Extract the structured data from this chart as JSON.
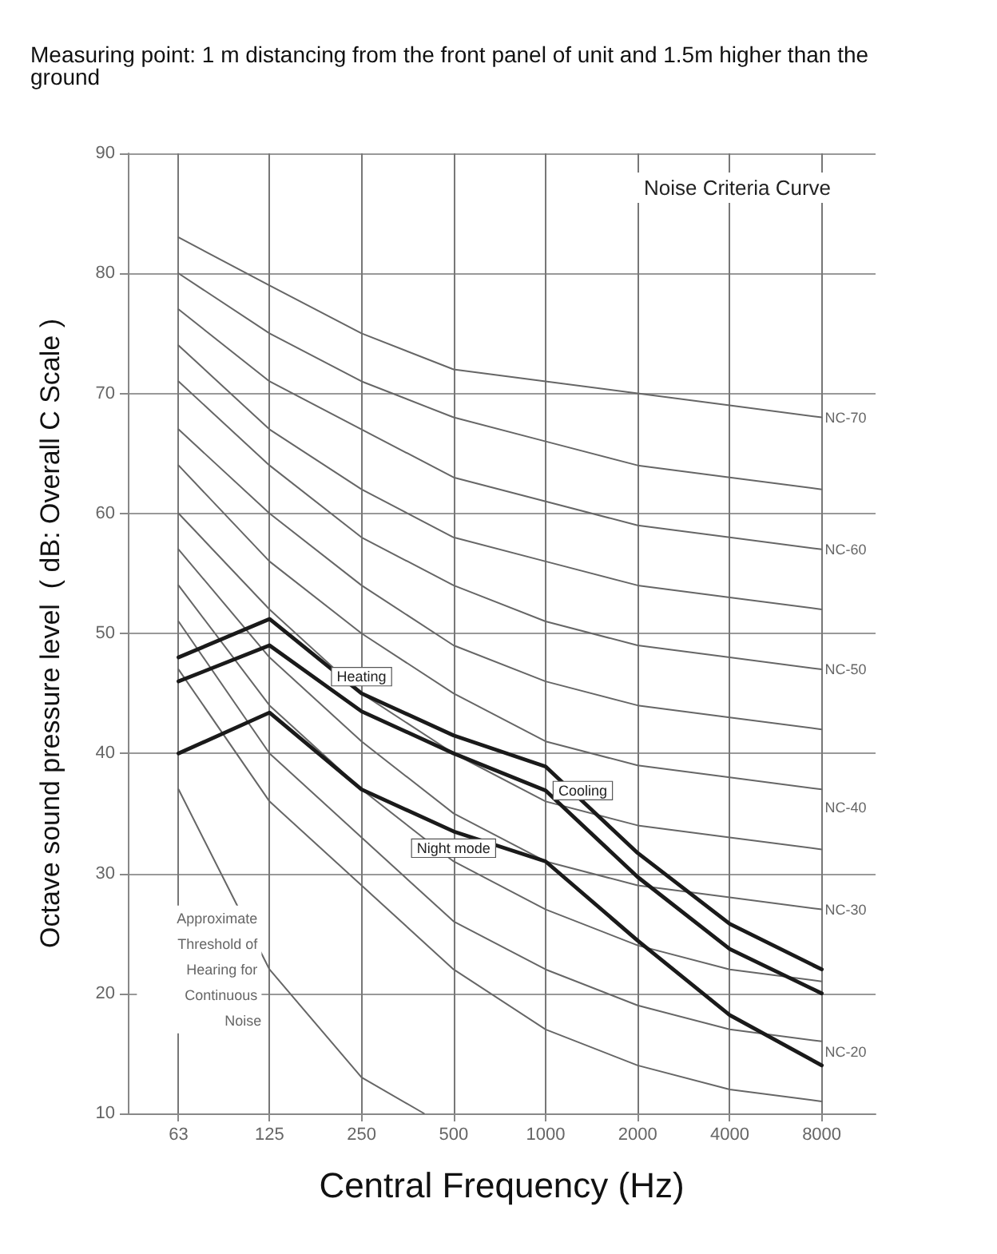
{
  "chart_data": {
    "type": "line",
    "subtitle": "Measuring point: 1 m distancing from the front panel of unit and 1.5m higher than the ground",
    "xlabel": "Central Frequency (Hz)",
    "ylabel": "Octave sound pressure level  ( dB: Overall C Scale )",
    "annotations": [
      "Noise Criteria Curve"
    ],
    "x": [
      63,
      125,
      250,
      500,
      1000,
      2000,
      4000,
      8000
    ],
    "series": [
      {
        "name": "NC-70",
        "color": "#666666",
        "values": [
          83,
          79,
          75,
          72,
          71,
          70,
          69,
          68
        ]
      },
      {
        "color": "#666666",
        "values": [
          80,
          75,
          71,
          68,
          66,
          64,
          63,
          62
        ]
      },
      {
        "name": "NC-60",
        "color": "#666666",
        "values": [
          77,
          71,
          67,
          63,
          61,
          59,
          58,
          57
        ]
      },
      {
        "color": "#666666",
        "values": [
          74,
          67,
          62,
          58,
          56,
          54,
          53,
          52
        ]
      },
      {
        "name": "NC-50",
        "color": "#666666",
        "values": [
          71,
          64,
          58,
          54,
          51,
          49,
          48,
          47
        ]
      },
      {
        "color": "#666666",
        "values": [
          67,
          60,
          54,
          49,
          46,
          44,
          43,
          42
        ]
      },
      {
        "name": "NC-40",
        "color": "#666666",
        "values": [
          64,
          56,
          50,
          45,
          41,
          39,
          38,
          37
        ]
      },
      {
        "color": "#666666",
        "values": [
          60,
          52,
          45,
          40,
          36,
          34,
          33,
          32
        ]
      },
      {
        "name": "NC-30",
        "color": "#666666",
        "values": [
          57,
          48,
          41,
          35,
          31,
          29,
          28,
          27
        ]
      },
      {
        "color": "#666666",
        "values": [
          54,
          44,
          37,
          31,
          27,
          24,
          22,
          21
        ]
      },
      {
        "name": "NC-20",
        "color": "#666666",
        "values": [
          51,
          40,
          33,
          26,
          22,
          19,
          17,
          16
        ]
      },
      {
        "color": "#666666",
        "values": [
          47,
          36,
          29,
          22,
          17,
          14,
          12,
          11
        ]
      },
      {
        "name": "Approximate Threshold of Hearing for Continuous Noise",
        "color": "#666666",
        "x": [
          63,
          125,
          250,
          400
        ],
        "values": [
          37,
          22,
          13,
          10
        ]
      },
      {
        "name": "Heating",
        "color": "#1a1a1a",
        "values": [
          48,
          51.2,
          45,
          41.5,
          38.9,
          31.7,
          25.8,
          22
        ]
      },
      {
        "name": "Cooling",
        "color": "#1a1a1a",
        "values": [
          46,
          49,
          43.5,
          40,
          36.9,
          29.7,
          23.7,
          20
        ]
      },
      {
        "name": "Night mode",
        "color": "#1a1a1a",
        "values": [
          40,
          43.4,
          37,
          33.5,
          31,
          24.4,
          18.2,
          14
        ]
      }
    ],
    "log": "x",
    "xlim": [
      43,
      12000
    ],
    "xticks": [
      63,
      125,
      250,
      500,
      1000,
      2000,
      4000,
      8000
    ],
    "ylim": [
      10,
      90
    ],
    "yticks": [
      10,
      20,
      30,
      40,
      50,
      60,
      70,
      80,
      90
    ],
    "grid": true,
    "legend": false,
    "marker": "none",
    "line_style": "solid"
  }
}
